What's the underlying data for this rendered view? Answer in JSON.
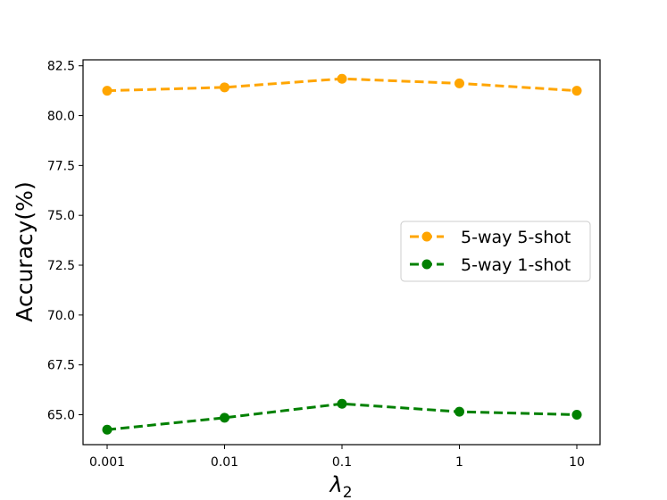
{
  "chart_data": {
    "type": "line",
    "title": "",
    "xlabel": "λ",
    "xlabel_subscript": "2",
    "ylabel": "Accuracy(%)",
    "categories": [
      "0.001",
      "0.01",
      "0.1",
      "1",
      "10"
    ],
    "ylim": [
      63.5,
      82.8
    ],
    "yticks": [
      "65.0",
      "67.5",
      "70.0",
      "72.5",
      "75.0",
      "77.5",
      "80.0",
      "82.5"
    ],
    "grid": false,
    "legend_position": "right",
    "series": [
      {
        "name": "5-way 5-shot",
        "color": "#ffa500",
        "values": [
          81.25,
          81.42,
          81.85,
          81.62,
          81.25
        ]
      },
      {
        "name": "5-way 1-shot",
        "color": "#008000",
        "values": [
          64.25,
          64.85,
          65.55,
          65.15,
          65.0
        ]
      }
    ]
  }
}
